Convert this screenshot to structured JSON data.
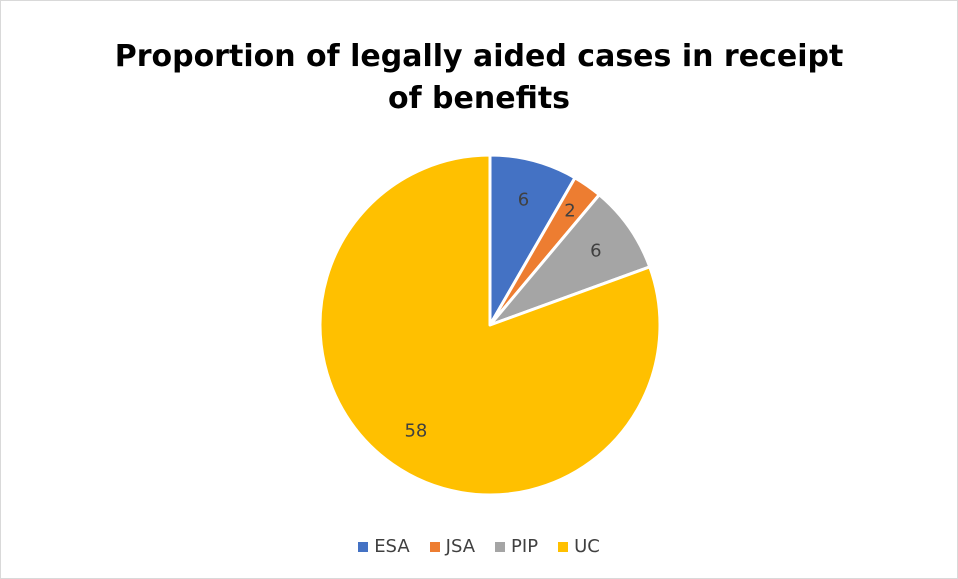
{
  "chart_data": {
    "type": "pie",
    "title_lines": [
      "Proportion of legally aided cases in receipt",
      "of benefits"
    ],
    "categories": [
      "ESA",
      "JSA",
      "PIP",
      "UC"
    ],
    "values": [
      6,
      2,
      6,
      58
    ],
    "colors": [
      "#4472c4",
      "#ed7d31",
      "#a5a5a5",
      "#ffc000"
    ],
    "legend_position": "bottom",
    "data_labels": true
  }
}
